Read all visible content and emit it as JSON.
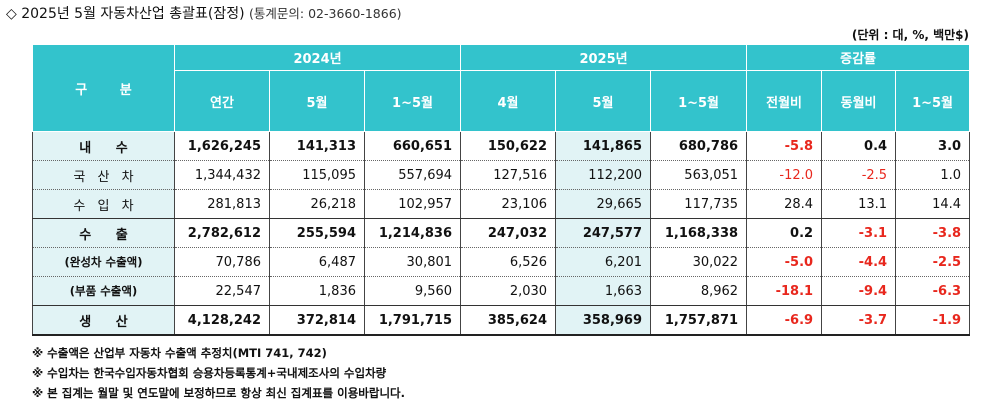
{
  "title": {
    "text": "◇ 2025년 5월 자동차산업 총괄표(잠정)",
    "contact": "(통계문의: 02-3660-1866)"
  },
  "unit": "(단위 : 대, %, 백만$)",
  "headers": {
    "gubun": "구 분",
    "group_2024": "2024년",
    "group_2025": "2025년",
    "group_change": "증감률",
    "cols": [
      "연간",
      "5월",
      "1~5월",
      "4월",
      "5월",
      "1~5월",
      "전월비",
      "동월비",
      "1~5월"
    ]
  },
  "rows": [
    {
      "label": "내 수",
      "values": [
        "1,626,245",
        "141,313",
        "660,651",
        "150,622",
        "141,865",
        "680,786",
        "-5.8",
        "0.4",
        "3.0"
      ]
    },
    {
      "label": "국 산 차",
      "values": [
        "1,344,432",
        "115,095",
        "557,694",
        "127,516",
        "112,200",
        "563,051",
        "-12.0",
        "-2.5",
        "1.0"
      ]
    },
    {
      "label": "수 입 차",
      "values": [
        "281,813",
        "26,218",
        "102,957",
        "23,106",
        "29,665",
        "117,735",
        "28.4",
        "13.1",
        "14.4"
      ]
    },
    {
      "label": "수 출",
      "values": [
        "2,782,612",
        "255,594",
        "1,214,836",
        "247,032",
        "247,577",
        "1,168,338",
        "0.2",
        "-3.1",
        "-3.8"
      ]
    },
    {
      "label": "(완성차 수출액)",
      "values": [
        "70,786",
        "6,487",
        "30,801",
        "6,526",
        "6,201",
        "30,022",
        "-5.0",
        "-4.4",
        "-2.5"
      ]
    },
    {
      "label": "(부품 수출액)",
      "values": [
        "22,547",
        "1,836",
        "9,560",
        "2,030",
        "1,663",
        "8,962",
        "-18.1",
        "-9.4",
        "-6.3"
      ]
    },
    {
      "label": "생 산",
      "values": [
        "4,128,242",
        "372,814",
        "1,791,715",
        "385,624",
        "358,969",
        "1,757,871",
        "-6.9",
        "-3.7",
        "-1.9"
      ]
    }
  ],
  "notes": [
    "※ 수출액은 산업부 자동차 수출액 추정치(MTI 741, 742)",
    "※ 수입차는 한국수입자동차협회 승용차등록통계+국내제조사의 수입차량",
    "※ 본 집계는 월말 및 연도말에 보정하므로 항상 최신 집계표를 이용바랍니다."
  ],
  "colors": {
    "header_bg": "#33c3cc",
    "highlight_bg": "#e1f3f5",
    "negative": "#e8271d"
  }
}
